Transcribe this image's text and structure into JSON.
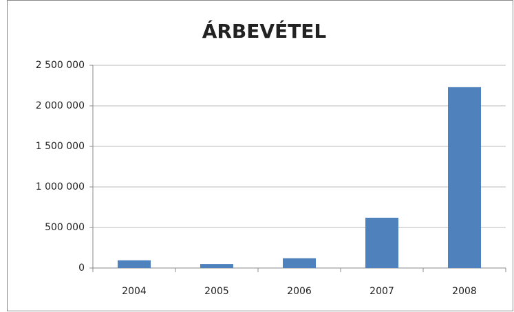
{
  "chart_data": {
    "type": "bar",
    "title": "ÁRBEVÉTEL",
    "categories": [
      "2004",
      "2005",
      "2006",
      "2007",
      "2008"
    ],
    "values": [
      95000,
      50000,
      120000,
      620000,
      2230000
    ],
    "color": "#4f81bd",
    "ylim": [
      0,
      2500000
    ],
    "yticks": [
      0,
      {
        "value": 500000,
        "label": "500 000"
      },
      {
        "value": 1000000,
        "label": "1 000 000"
      },
      {
        "value": 1500000,
        "label": "1 500 000"
      },
      {
        "value": 2000000,
        "label": "2 000 000"
      },
      {
        "value": 2500000,
        "label": "2 500 000"
      }
    ],
    "grid": true
  }
}
